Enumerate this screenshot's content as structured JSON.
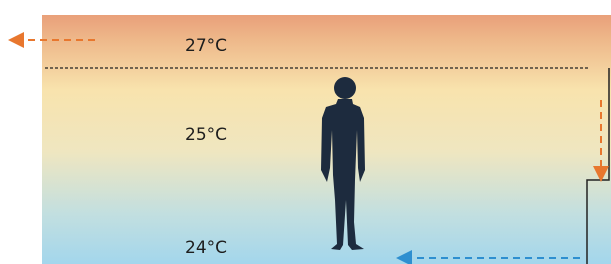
{
  "labels": {
    "top": "27°C",
    "middle": "25°C",
    "bottom": "24°C"
  }
}
